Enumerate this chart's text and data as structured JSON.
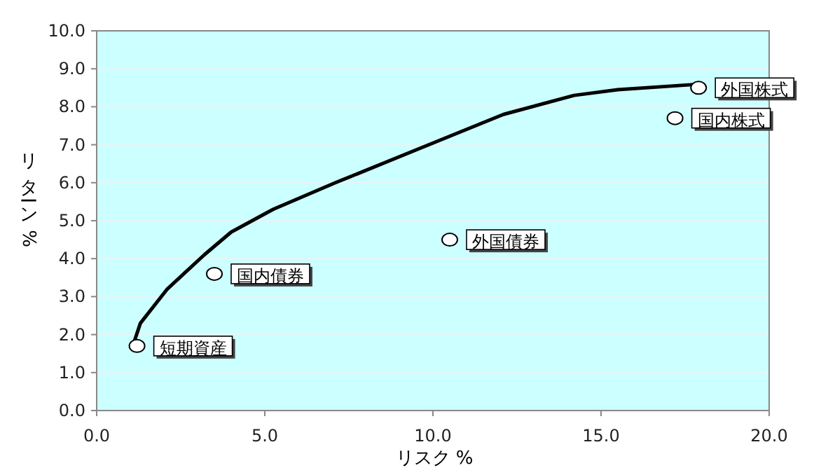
{
  "chart_data": {
    "type": "scatter",
    "xlabel": "リスク %",
    "ylabel": "リターン %",
    "xlim": [
      0,
      20
    ],
    "ylim": [
      0,
      10
    ],
    "xticks": [
      {
        "value": 0,
        "label": "0.0"
      },
      {
        "value": 5,
        "label": "5.0"
      },
      {
        "value": 10,
        "label": "10.0"
      },
      {
        "value": 15,
        "label": "15.0"
      },
      {
        "value": 20,
        "label": "20.0"
      }
    ],
    "yticks": [
      {
        "value": 0,
        "label": "0.0"
      },
      {
        "value": 1,
        "label": "1.0"
      },
      {
        "value": 2,
        "label": "2.0"
      },
      {
        "value": 3,
        "label": "3.0"
      },
      {
        "value": 4,
        "label": "4.0"
      },
      {
        "value": 5,
        "label": "5.0"
      },
      {
        "value": 6,
        "label": "6.0"
      },
      {
        "value": 7,
        "label": "7.0"
      },
      {
        "value": 8,
        "label": "8.0"
      },
      {
        "value": 9,
        "label": "9.0"
      },
      {
        "value": 10,
        "label": "10.0"
      }
    ],
    "grid": "y",
    "series": [
      {
        "type": "line",
        "color": "#000000",
        "x": [
          1.1,
          1.3,
          2.1,
          3.2,
          4.0,
          5.25,
          7.1,
          9.6,
          12.1,
          14.2,
          15.5,
          18.0
        ],
        "values": [
          1.77,
          2.3,
          3.2,
          4.1,
          4.7,
          5.3,
          6.0,
          6.9,
          7.8,
          8.3,
          8.45,
          8.6
        ]
      },
      {
        "type": "scatter",
        "color": "#ffffff",
        "marker": "circle",
        "x": [
          1.2,
          3.5,
          10.5,
          17.2,
          17.9
        ],
        "values": [
          1.7,
          3.6,
          4.5,
          7.7,
          8.5
        ]
      }
    ],
    "annotations": [
      {
        "text": "短期資産",
        "x": 1.2,
        "y": 1.7
      },
      {
        "text": "国内債券",
        "x": 3.5,
        "y": 3.6
      },
      {
        "text": "外国債券",
        "x": 10.5,
        "y": 4.5
      },
      {
        "text": "国内株式",
        "x": 17.2,
        "y": 7.7
      },
      {
        "text": "外国株式",
        "x": 17.9,
        "y": 8.5
      }
    ]
  }
}
